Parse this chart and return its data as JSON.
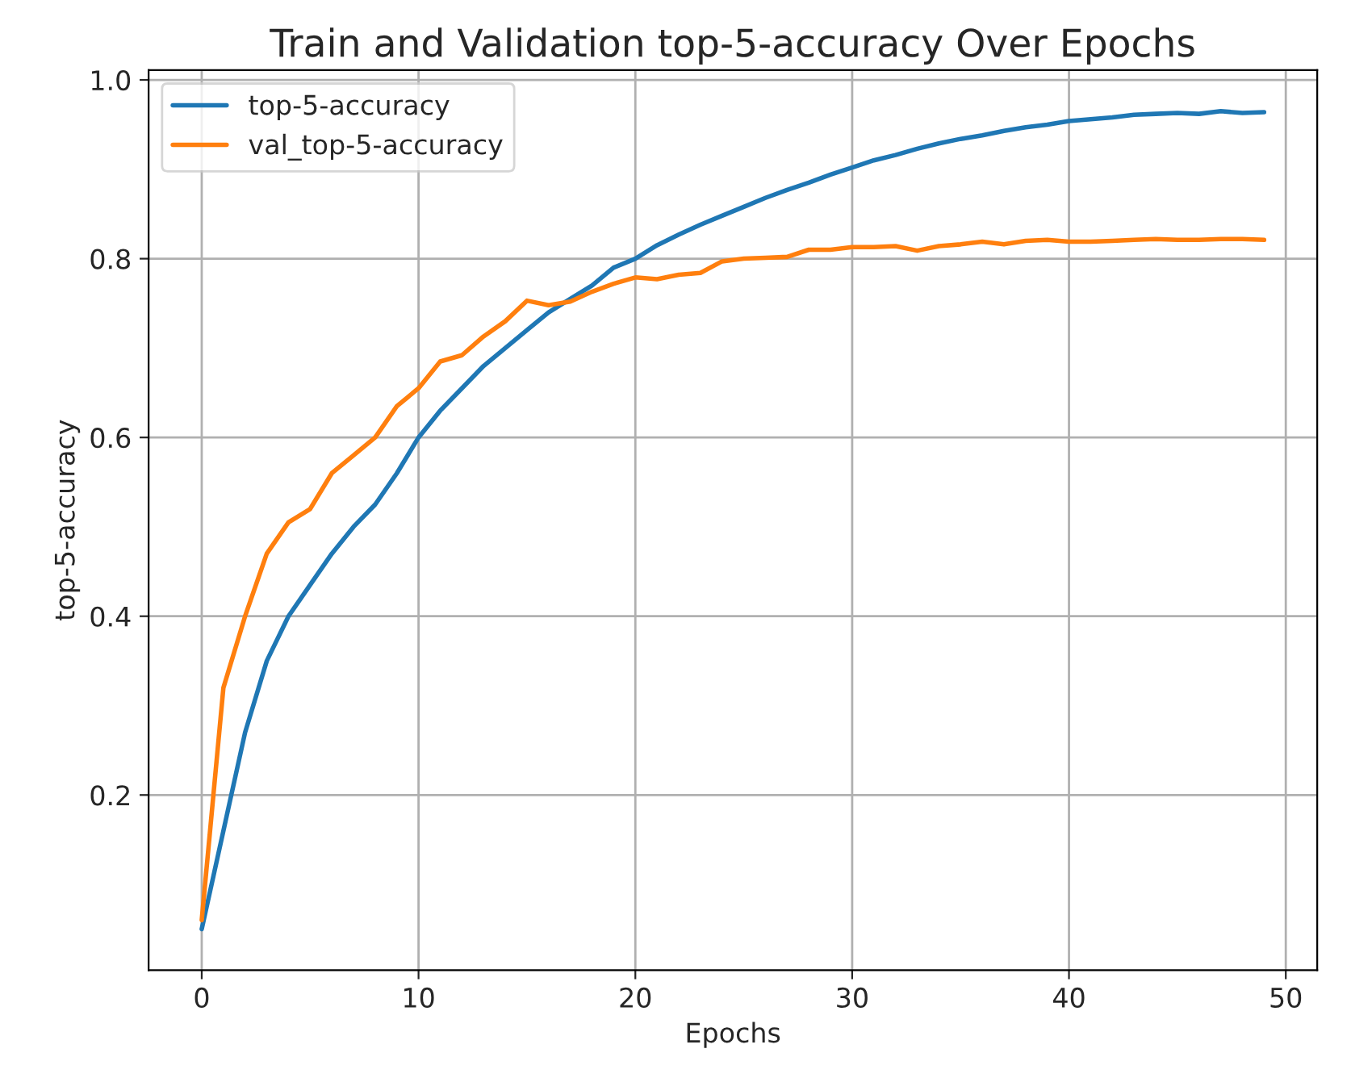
{
  "chart_data": {
    "type": "line",
    "title": "Train and Validation top-5-accuracy Over Epochs",
    "xlabel": "Epochs",
    "ylabel": "top-5-accuracy",
    "x": [
      0,
      1,
      2,
      3,
      4,
      5,
      6,
      7,
      8,
      9,
      10,
      11,
      12,
      13,
      14,
      15,
      16,
      17,
      18,
      19,
      20,
      21,
      22,
      23,
      24,
      25,
      26,
      27,
      28,
      29,
      30,
      31,
      32,
      33,
      34,
      35,
      36,
      37,
      38,
      39,
      40,
      41,
      42,
      43,
      44,
      45,
      46,
      47,
      48,
      49
    ],
    "series": [
      {
        "name": "top-5-accuracy",
        "color": "#1f77b4",
        "values": [
          0.05,
          0.16,
          0.27,
          0.35,
          0.4,
          0.435,
          0.47,
          0.5,
          0.525,
          0.56,
          0.6,
          0.63,
          0.655,
          0.68,
          0.7,
          0.72,
          0.74,
          0.755,
          0.77,
          0.79,
          0.8,
          0.815,
          0.827,
          0.838,
          0.848,
          0.858,
          0.868,
          0.877,
          0.885,
          0.894,
          0.902,
          0.91,
          0.916,
          0.923,
          0.929,
          0.934,
          0.938,
          0.943,
          0.947,
          0.95,
          0.954,
          0.956,
          0.958,
          0.961,
          0.962,
          0.963,
          0.962,
          0.965,
          0.963,
          0.964
        ]
      },
      {
        "name": "val_top-5-accuracy",
        "color": "#ff7f0e",
        "values": [
          0.06,
          0.32,
          0.4,
          0.47,
          0.505,
          0.52,
          0.56,
          0.58,
          0.6,
          0.635,
          0.655,
          0.685,
          0.692,
          0.713,
          0.73,
          0.753,
          0.748,
          0.752,
          0.763,
          0.772,
          0.779,
          0.777,
          0.782,
          0.784,
          0.797,
          0.8,
          0.801,
          0.802,
          0.81,
          0.81,
          0.813,
          0.813,
          0.814,
          0.809,
          0.814,
          0.816,
          0.819,
          0.816,
          0.82,
          0.821,
          0.819,
          0.819,
          0.82,
          0.821,
          0.822,
          0.821,
          0.821,
          0.822,
          0.822,
          0.821
        ]
      }
    ],
    "xlim": [
      -2.45,
      51.45
    ],
    "ylim": [
      0.004,
      1.011
    ],
    "xticks": [
      0,
      10,
      20,
      30,
      40,
      50
    ],
    "yticks": [
      {
        "value": 0.2,
        "label": "0.2"
      },
      {
        "value": 0.4,
        "label": "0.4"
      },
      {
        "value": 0.6,
        "label": "0.6"
      },
      {
        "value": 0.8,
        "label": "0.8"
      },
      {
        "value": 1.0,
        "label": "1.0"
      }
    ],
    "grid": true,
    "legend": "top left"
  }
}
